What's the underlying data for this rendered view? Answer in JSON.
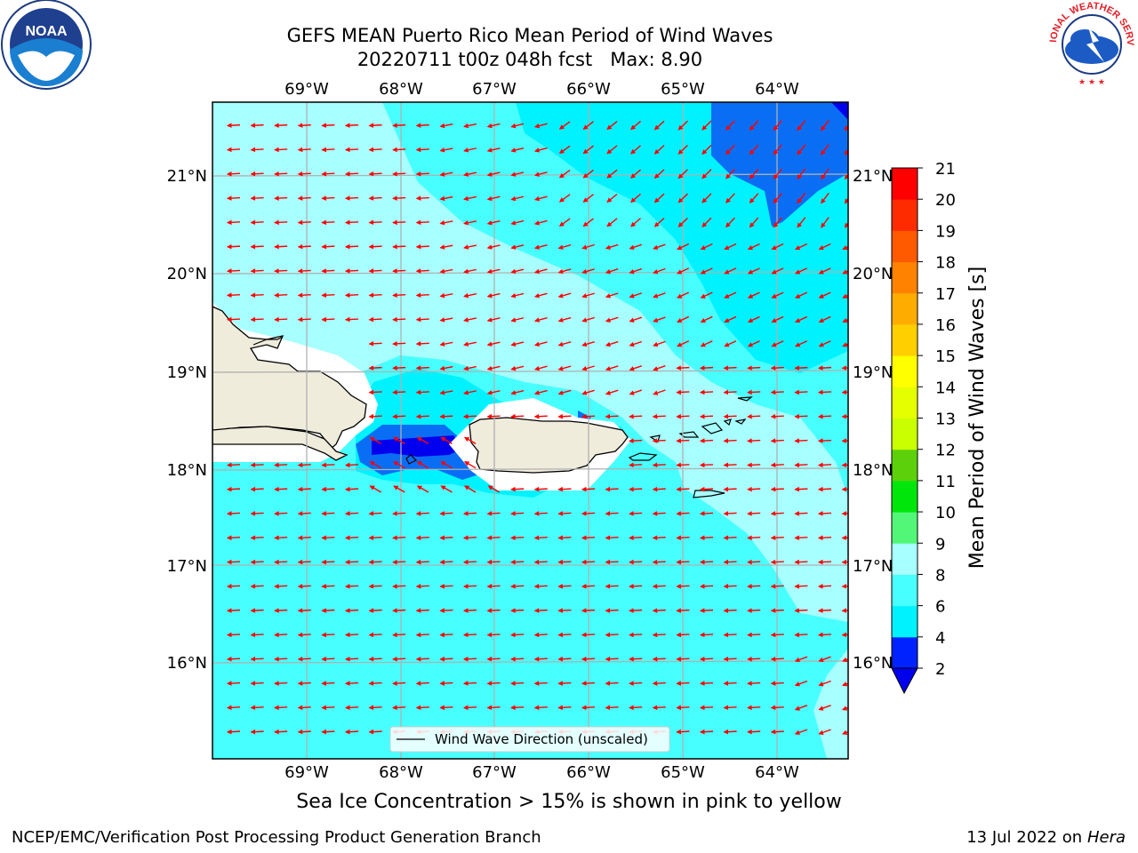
{
  "title": {
    "line1": "GEFS MEAN Puerto Rico Mean Period of Wind Waves",
    "line2": "20220711 t00z 048h fcst   Max: 8.90"
  },
  "map": {
    "lon_labels": [
      "69°W",
      "68°W",
      "67°W",
      "66°W",
      "65°W",
      "64°W"
    ],
    "lat_labels": [
      "21°N",
      "20°N",
      "19°N",
      "18°N",
      "17°N",
      "16°N"
    ],
    "legend_label": "Wind Wave Direction (unscaled)",
    "arrow_color": "#ff0000"
  },
  "colorbar": {
    "label": "Mean Period of Wind Waves [s]",
    "ticks": [
      "21",
      "20",
      "19",
      "18",
      "17",
      "16",
      "15",
      "14",
      "13",
      "12",
      "11",
      "10",
      "9",
      "8",
      "6",
      "4",
      "2"
    ],
    "colors_bottom_to_top": [
      "#0022ff",
      "#00f2ff",
      "#48ffff",
      "#a7ffff",
      "#52f777",
      "#00e60b",
      "#5cd10b",
      "#c9ff00",
      "#e5ff00",
      "#ffff00",
      "#ffcf00",
      "#ffac00",
      "#ff8200",
      "#ff5a00",
      "#ff2b00",
      "#ff0000"
    ],
    "under_color": "#0000ee"
  },
  "note": "Sea Ice Concentration > 15% is shown in pink to yellow",
  "footer": {
    "left": "NCEP/EMC/Verification Post Processing Product Generation Branch",
    "right_date": "13 Jul 2022 on ",
    "right_host": "Hera"
  },
  "logos": {
    "left_text": "NOAA",
    "right_text": "NATIONAL WEATHER SERVICE"
  }
}
